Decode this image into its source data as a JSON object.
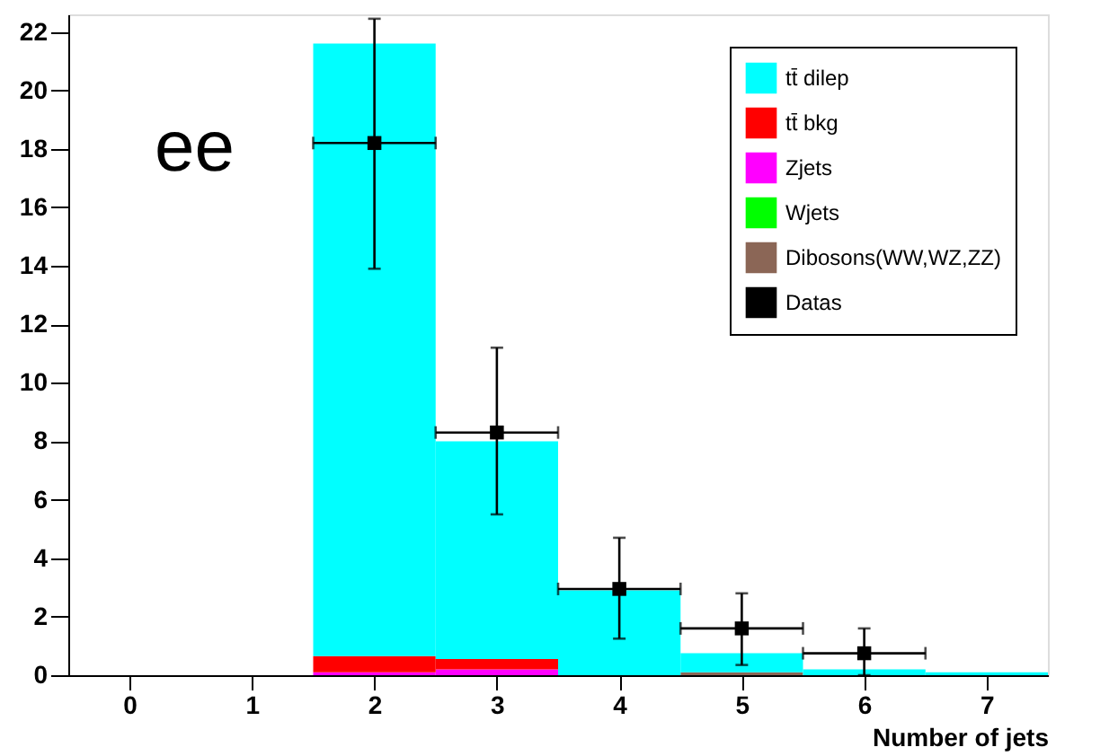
{
  "chart_data": {
    "type": "bar",
    "stacked": true,
    "x": [
      0,
      1,
      2,
      3,
      4,
      5,
      6,
      7
    ],
    "series": [
      {
        "name": "Dibosons(WW,WZ,ZZ)",
        "color": "#8b6656",
        "values": [
          0,
          0,
          0,
          0,
          0,
          0.1,
          0,
          0
        ]
      },
      {
        "name": "Wjets",
        "color": "#00ff00",
        "values": [
          0,
          0,
          0,
          0,
          0,
          0,
          0,
          0
        ]
      },
      {
        "name": "Zjets",
        "color": "#ff00ff",
        "values": [
          0,
          0,
          0.1,
          0.2,
          0,
          0,
          0,
          0
        ]
      },
      {
        "name": "tt̄ bkg",
        "color": "#ff0000",
        "values": [
          0,
          0,
          0.55,
          0.35,
          0,
          0,
          0,
          0
        ]
      },
      {
        "name": "tt̄ dilep",
        "color": "#00ffff",
        "values": [
          0,
          0,
          20.95,
          7.45,
          2.9,
          0.65,
          0.2,
          0.1
        ]
      },
      {
        "name": "Datas",
        "type": "scatter",
        "color": "#000000",
        "x": [
          2,
          3,
          4,
          5,
          6
        ],
        "values": [
          18.2,
          8.3,
          2.95,
          1.6,
          0.75
        ],
        "errors": [
          [
            13.9,
            22.45
          ],
          [
            5.5,
            11.2
          ],
          [
            1.25,
            4.7
          ],
          [
            0.35,
            2.8
          ],
          [
            0,
            1.6
          ]
        ],
        "xerrors": [
          0.5,
          0.5,
          0.5,
          0.5,
          0.5
        ]
      }
    ],
    "xlabel": "Number of jets",
    "xlim": [
      -0.5,
      7.5
    ],
    "xticks": [
      0,
      1,
      2,
      3,
      4,
      5,
      6,
      7
    ],
    "ylim": [
      0,
      22.6
    ],
    "yticks": [
      0,
      2,
      4,
      6,
      8,
      10,
      12,
      14,
      16,
      18,
      20,
      22
    ],
    "grid": false,
    "legend": "top right",
    "marker": "square",
    "annotations": [
      "ee"
    ]
  }
}
